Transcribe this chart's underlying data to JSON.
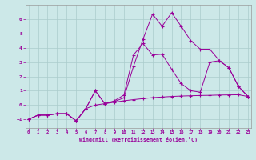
{
  "xlabel": "Windchill (Refroidissement éolien,°C)",
  "bg_color": "#cce8e8",
  "grid_color": "#aacccc",
  "line_color": "#990099",
  "xlim": [
    -0.3,
    23.3
  ],
  "ylim": [
    -1.6,
    7.0
  ],
  "xticks": [
    0,
    1,
    2,
    3,
    4,
    5,
    6,
    7,
    8,
    9,
    10,
    11,
    12,
    13,
    14,
    15,
    16,
    17,
    18,
    19,
    20,
    21,
    22,
    23
  ],
  "yticks": [
    -1,
    0,
    1,
    2,
    3,
    4,
    5,
    6
  ],
  "line1_x": [
    0,
    1,
    2,
    3,
    4,
    5,
    6,
    7,
    8,
    9,
    10,
    11,
    12,
    13,
    14,
    15,
    16,
    17,
    18,
    19,
    20,
    21,
    22,
    23
  ],
  "line1_y": [
    -1.0,
    -0.7,
    -0.7,
    -0.6,
    -0.6,
    -1.1,
    -0.25,
    0.0,
    0.1,
    0.2,
    0.3,
    0.38,
    0.45,
    0.52,
    0.56,
    0.6,
    0.63,
    0.65,
    0.67,
    0.68,
    0.7,
    0.71,
    0.72,
    0.6
  ],
  "line2_x": [
    0,
    1,
    2,
    3,
    4,
    5,
    6,
    7,
    8,
    9,
    10,
    11,
    12,
    13,
    14,
    15,
    16,
    17,
    18,
    19,
    20,
    21,
    22,
    23
  ],
  "line2_y": [
    -1.0,
    -0.7,
    -0.7,
    -0.6,
    -0.6,
    -1.1,
    -0.25,
    1.0,
    0.1,
    0.25,
    0.5,
    2.7,
    4.6,
    6.35,
    5.5,
    6.45,
    5.5,
    4.5,
    3.9,
    3.9,
    3.1,
    2.6,
    1.3,
    0.6
  ],
  "line3_x": [
    0,
    1,
    2,
    3,
    4,
    5,
    6,
    7,
    8,
    9,
    10,
    11,
    12,
    13,
    14,
    15,
    16,
    17,
    18,
    19,
    20,
    21,
    22,
    23
  ],
  "line3_y": [
    -1.0,
    -0.7,
    -0.7,
    -0.6,
    -0.6,
    -1.1,
    -0.25,
    1.0,
    0.1,
    0.3,
    0.7,
    3.5,
    4.3,
    3.5,
    3.55,
    2.5,
    1.5,
    1.0,
    0.9,
    3.0,
    3.1,
    2.6,
    1.3,
    0.6
  ]
}
